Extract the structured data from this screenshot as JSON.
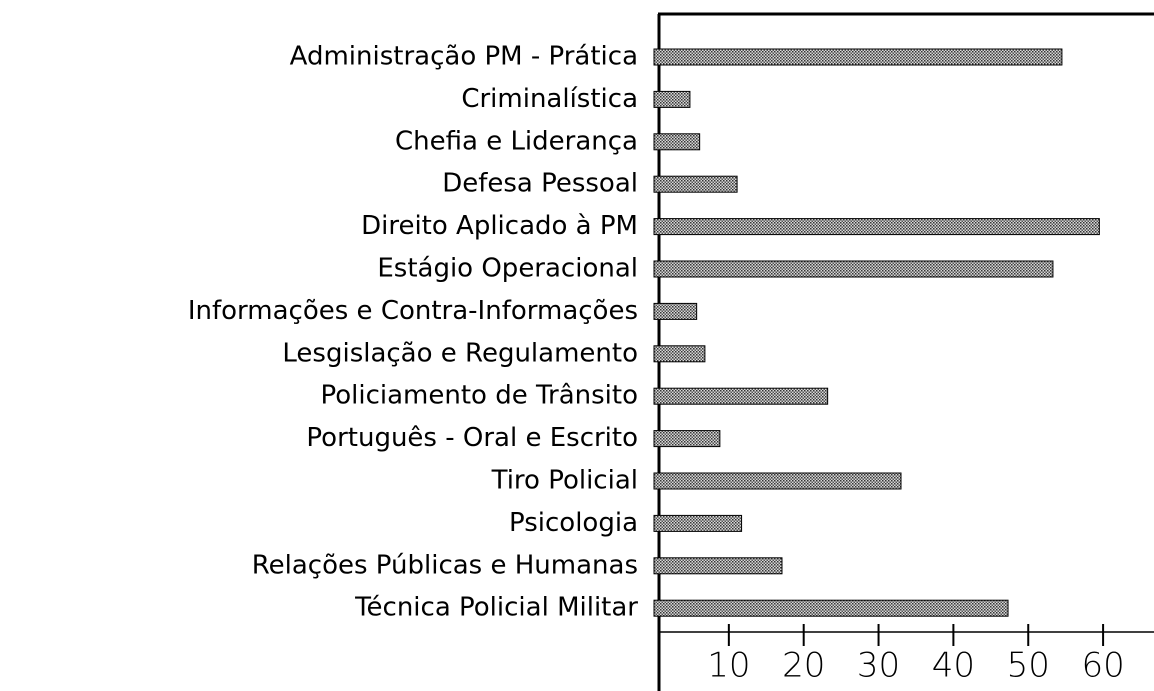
{
  "chart_data": {
    "type": "barh",
    "categories": [
      "Administração PM - Prática",
      "Criminalística",
      "Chefia e Liderança",
      "Defesa Pessoal",
      "Direito Aplicado à PM",
      "Estágio Operacional",
      "Informações e Contra-Informações",
      "Lesgislação e Regulamento",
      "Policiamento de Trânsito",
      "Português - Oral e Escrito",
      "Tiro Policial",
      "Psicologia",
      "Relações Públicas e Humanas",
      "Técnica Policial Militar"
    ],
    "values": [
      54.5,
      4.8,
      6.1,
      11.1,
      59.5,
      53.3,
      5.7,
      6.8,
      23.2,
      8.8,
      33,
      11.7,
      17.1,
      47.3
    ],
    "color": "#8a8a8a",
    "xlim": [
      0,
      66
    ],
    "xticks": [
      10,
      20,
      30,
      40,
      50,
      60
    ]
  }
}
